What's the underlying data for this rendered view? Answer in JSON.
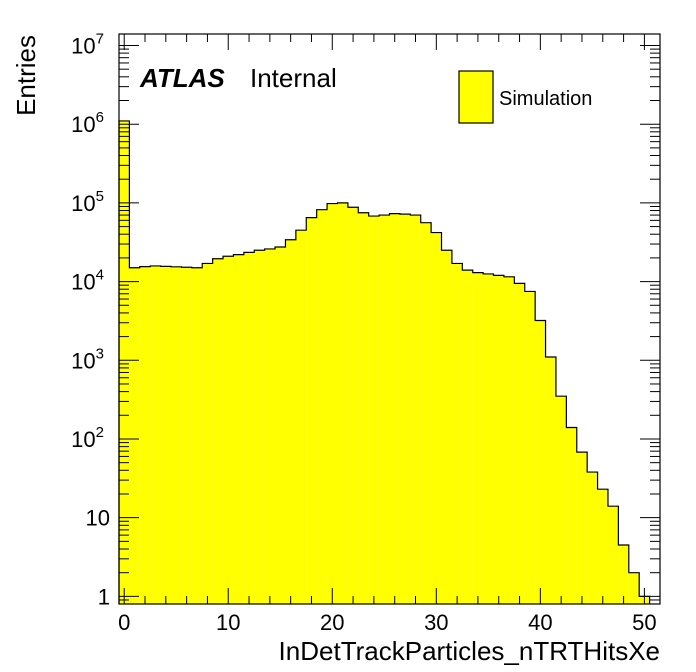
{
  "chart_data": {
    "type": "bar",
    "histogram": true,
    "xlabel": "InDetTrackParticles_nTRTHitsXe",
    "ylabel": "Entries",
    "xlim": [
      -0.5,
      51.5
    ],
    "ylim": [
      0.8,
      14000000
    ],
    "log_y": true,
    "grid": false,
    "legend_position": "top-right",
    "bin_width": 1,
    "series": [
      {
        "name": "Simulation",
        "color": "#ffff00",
        "bin_start": -0.5,
        "values": [
          1100000,
          15000,
          15500,
          15800,
          15600,
          15400,
          15200,
          15000,
          17000,
          19500,
          21000,
          22000,
          23500,
          25000,
          26000,
          27500,
          34000,
          45000,
          65000,
          82000,
          98000,
          100000,
          88000,
          75000,
          68000,
          70000,
          73000,
          72000,
          70000,
          56000,
          42000,
          25000,
          17000,
          14000,
          13000,
          12500,
          12000,
          11500,
          9500,
          7500,
          3200,
          1100,
          350,
          140,
          68,
          38,
          23,
          14,
          4.5,
          2,
          1
        ]
      }
    ],
    "x_ticks": [
      {
        "value": 0,
        "label": "0"
      },
      {
        "value": 10,
        "label": "10"
      },
      {
        "value": 20,
        "label": "20"
      },
      {
        "value": 30,
        "label": "30"
      },
      {
        "value": 40,
        "label": "40"
      },
      {
        "value": 50,
        "label": "50"
      }
    ],
    "y_ticks": [
      {
        "value": 1,
        "base": "1",
        "exp": ""
      },
      {
        "value": 10,
        "base": "10",
        "exp": ""
      },
      {
        "value": 100,
        "base": "10",
        "exp": "2"
      },
      {
        "value": 1000,
        "base": "10",
        "exp": "3"
      },
      {
        "value": 10000,
        "base": "10",
        "exp": "4"
      },
      {
        "value": 100000,
        "base": "10",
        "exp": "5"
      },
      {
        "value": 1000000,
        "base": "10",
        "exp": "6"
      },
      {
        "value": 10000000,
        "base": "10",
        "exp": "7"
      }
    ],
    "annotations": {
      "experiment": "ATLAS",
      "status": "Internal"
    },
    "legend": [
      {
        "label": "Simulation",
        "color": "#ffff00"
      }
    ]
  }
}
